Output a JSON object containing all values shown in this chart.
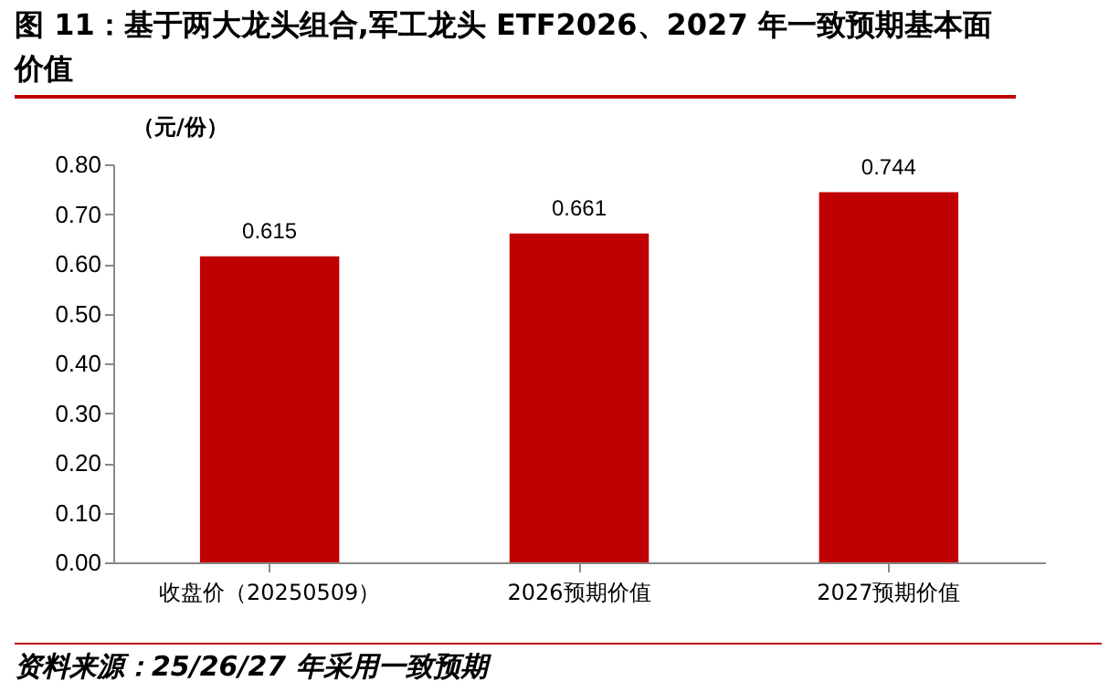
{
  "chart_data": {
    "type": "bar",
    "title": "图 11：基于两大龙头组合,军工龙头 ETF2026、2027 年一致预期基本面价值",
    "ylabel": "（元/份）",
    "categories": [
      "收盘价（20250509）",
      "2026预期价值",
      "2027预期价值"
    ],
    "values": [
      0.615,
      0.661,
      0.744
    ],
    "color": "#c00000",
    "data_labels": true,
    "ylim": [
      0,
      0.8
    ],
    "yticks": [
      {
        "value": 0,
        "label": "0.00"
      },
      {
        "value": 0.1,
        "label": "0.10"
      },
      {
        "value": 0.2,
        "label": "0.20"
      },
      {
        "value": 0.3,
        "label": "0.30"
      },
      {
        "value": 0.4,
        "label": "0.40"
      },
      {
        "value": 0.5,
        "label": "0.50"
      },
      {
        "value": 0.6,
        "label": "0.60"
      },
      {
        "value": 0.7,
        "label": "0.70"
      },
      {
        "value": 0.8,
        "label": "0.80"
      }
    ],
    "grid": false,
    "annotations": [
      "资料来源：25/26/27 年采用一致预期"
    ]
  }
}
